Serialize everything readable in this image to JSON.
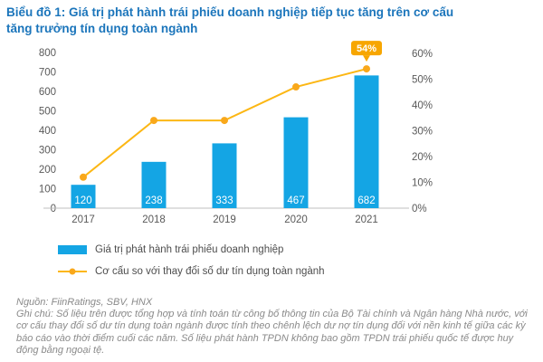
{
  "title": "Biểu đồ 1: Giá trị phát hành trái phiếu doanh nghiệp tiếp tục tăng trên cơ cấu\ntăng trưởng tín dụng toàn ngành",
  "colors": {
    "title": "#1B75BB",
    "bar": "#14A5E4",
    "bar_label": "#FFFFFF",
    "line": "#FCB714",
    "marker": "#F9A81B",
    "callout_bg": "#F7A600",
    "callout_text": "#FFFFFF",
    "axis_text": "#595959",
    "axis_line": "#BFBFBF",
    "legend_text": "#4D4D4D",
    "footer_text": "#8A8A8A"
  },
  "chart_data": {
    "type": "bar",
    "subtype": "combo-bar-line-dual-axis",
    "categories": [
      "2017",
      "2018",
      "2019",
      "2020",
      "2021"
    ],
    "series": [
      {
        "name": "Giá trị phát hành trái phiếu doanh nghiệp",
        "type": "bar",
        "axis": "left",
        "values": [
          120,
          238,
          333,
          467,
          682
        ]
      },
      {
        "name": "Cơ cấu so với thay đổi số dư tín dụng toàn ngành",
        "type": "line",
        "axis": "right",
        "values_pct": [
          12,
          34,
          34,
          47,
          54
        ]
      }
    ],
    "left_axis": {
      "min": 0,
      "max": 800,
      "step": 100,
      "ticks": [
        "800",
        "700",
        "600",
        "500",
        "400",
        "300",
        "200",
        "100",
        "0"
      ]
    },
    "right_axis": {
      "min": 0,
      "max": 60,
      "step": 10,
      "ticks": [
        "60%",
        "50%",
        "40%",
        "30%",
        "20%",
        "10%",
        "0%"
      ]
    },
    "bar_labels": [
      "120",
      "238",
      "333",
      "467",
      "682"
    ],
    "annotation": {
      "label": "54%",
      "category": "2021",
      "category_index": 4
    },
    "grid": false,
    "legend_position": "bottom"
  },
  "legend": {
    "items": [
      {
        "label": "Giá trị phát hành trái phiếu doanh nghiệp",
        "swatch": "bar"
      },
      {
        "label": "Cơ cấu so với thay đổi số dư tín dụng toàn ngành",
        "swatch": "line"
      }
    ]
  },
  "footer": {
    "source": "Nguồn: FiinRatings, SBV, HNX",
    "note": "Ghi chú: Số liệu trên được tổng hợp và tính toán từ công bố thông tin của Bộ Tài chính và Ngân hàng Nhà nước, với cơ cấu thay đổi số dư tín dụng toàn ngành được tính theo chênh lệch dư nợ tín dụng đối với nền kinh tế giữa các kỳ báo cáo vào thời điểm cuối các năm. Số liệu phát hành TPDN không bao gồm TPDN trái phiếu quốc tế được huy động bằng ngoại tệ."
  }
}
